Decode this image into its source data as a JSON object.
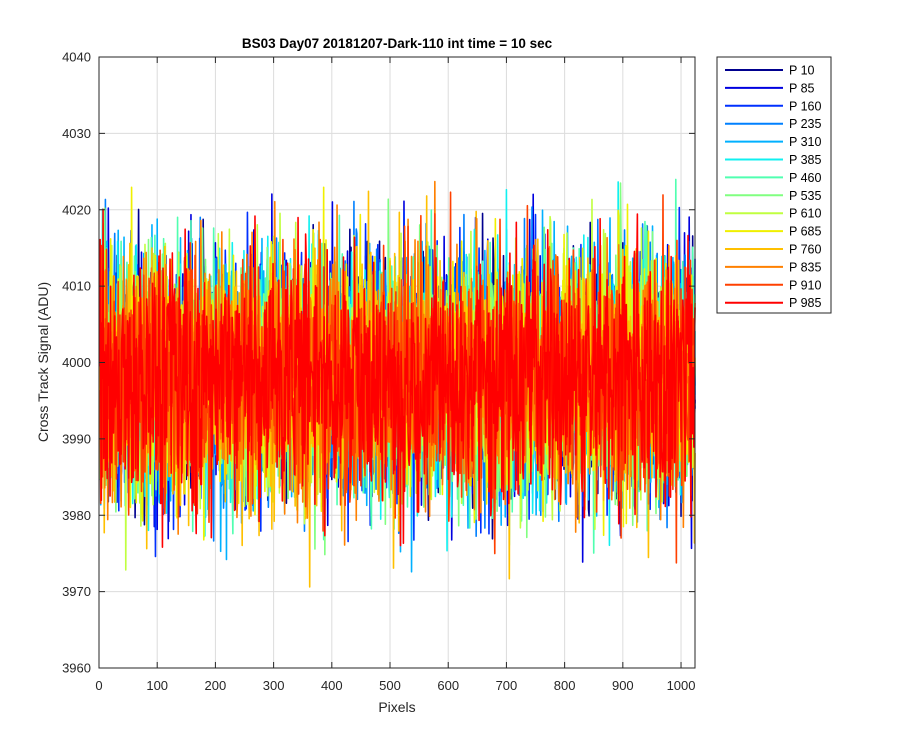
{
  "chart_data": {
    "type": "line",
    "title": "BS03 Day07 20181207-Dark-110 int time = 10 sec",
    "xlabel": "Pixels",
    "ylabel": "Cross Track Signal (ADU)",
    "xlim": [
      0,
      1024
    ],
    "ylim": [
      3960,
      4040
    ],
    "grid": true,
    "legend_placement": "outside-top-right",
    "x_ticks": [
      0,
      100,
      200,
      300,
      400,
      500,
      600,
      700,
      800,
      900,
      1000
    ],
    "y_ticks": [
      3960,
      3970,
      3980,
      3990,
      4000,
      4010,
      4020,
      4030,
      4040
    ],
    "x": {
      "start": 1,
      "end": 1024,
      "step": 1
    },
    "noise_model": {
      "mean": 3998,
      "std": 8,
      "min": 3964,
      "max": 4031
    },
    "series": [
      {
        "name": "P 10",
        "color": "#00008F",
        "seed": 11
      },
      {
        "name": "P 85",
        "color": "#0000DF",
        "seed": 23
      },
      {
        "name": "P 160",
        "color": "#0030FF",
        "seed": 37
      },
      {
        "name": "P 235",
        "color": "#0080FF",
        "seed": 41
      },
      {
        "name": "P 310",
        "color": "#00B0FF",
        "seed": 53
      },
      {
        "name": "P 385",
        "color": "#10F0F0",
        "seed": 67
      },
      {
        "name": "P 460",
        "color": "#50FFB0",
        "seed": 71
      },
      {
        "name": "P 535",
        "color": "#80FF80",
        "seed": 83
      },
      {
        "name": "P 610",
        "color": "#C0FF40",
        "seed": 97
      },
      {
        "name": "P 685",
        "color": "#F0F000",
        "seed": 101
      },
      {
        "name": "P 760",
        "color": "#FFC000",
        "seed": 113
      },
      {
        "name": "P 835",
        "color": "#FF8000",
        "seed": 127
      },
      {
        "name": "P 910",
        "color": "#FF4000",
        "seed": 131
      },
      {
        "name": "P 985",
        "color": "#FF0000",
        "seed": 149
      }
    ]
  }
}
